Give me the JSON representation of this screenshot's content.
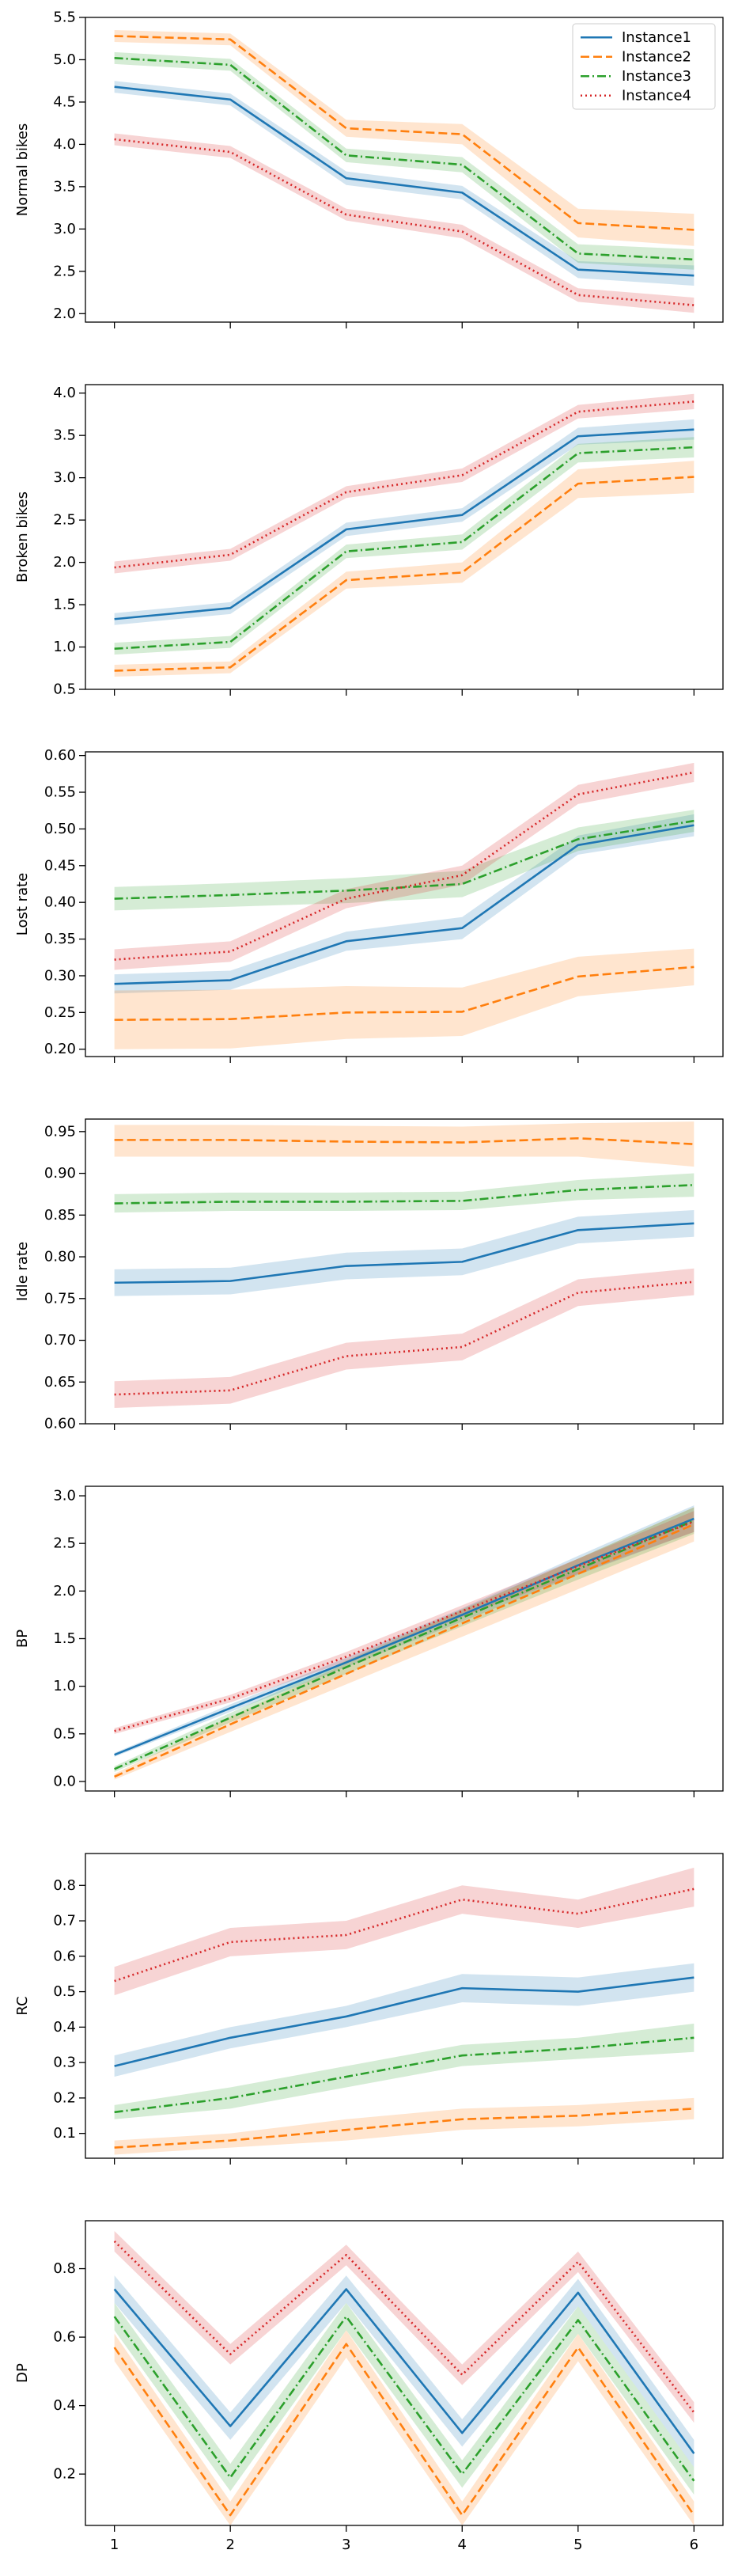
{
  "chart_data": [
    {
      "type": "line",
      "ylabel": "Normal bikes",
      "ylim": [
        1.9,
        5.5
      ],
      "yticks": [
        2.0,
        2.5,
        3.0,
        3.5,
        4.0,
        4.5,
        5.0,
        5.5
      ],
      "ytick_labels": [
        "2.0",
        "2.5",
        "3.0",
        "3.5",
        "4.0",
        "4.5",
        "5.0",
        "5.5"
      ],
      "show_xtick_labels": false,
      "legend": "top-right",
      "series": [
        {
          "name": "Instance1",
          "values": [
            4.68,
            4.53,
            3.6,
            3.43,
            2.52,
            2.45
          ],
          "lo": [
            4.61,
            4.46,
            3.52,
            3.35,
            2.42,
            2.33
          ],
          "hi": [
            4.75,
            4.6,
            3.68,
            3.51,
            2.62,
            2.57
          ]
        },
        {
          "name": "Instance2",
          "values": [
            5.28,
            5.24,
            4.19,
            4.12,
            3.07,
            2.99
          ],
          "lo": [
            5.21,
            5.17,
            4.09,
            4.0,
            2.9,
            2.8
          ],
          "hi": [
            5.35,
            5.31,
            4.29,
            4.24,
            3.24,
            3.18
          ]
        },
        {
          "name": "Instance3",
          "values": [
            5.02,
            4.94,
            3.87,
            3.76,
            2.71,
            2.64
          ],
          "lo": [
            4.95,
            4.87,
            3.79,
            3.67,
            2.6,
            2.52
          ],
          "hi": [
            5.09,
            5.01,
            3.95,
            3.85,
            2.82,
            2.76
          ]
        },
        {
          "name": "Instance4",
          "values": [
            4.06,
            3.91,
            3.17,
            2.97,
            2.22,
            2.1
          ],
          "lo": [
            3.99,
            3.84,
            3.1,
            2.89,
            2.14,
            2.01
          ],
          "hi": [
            4.13,
            3.98,
            3.24,
            3.05,
            2.3,
            2.19
          ]
        }
      ]
    },
    {
      "type": "line",
      "ylabel": "Broken bikes",
      "ylim": [
        0.5,
        4.1
      ],
      "yticks": [
        0.5,
        1.0,
        1.5,
        2.0,
        2.5,
        3.0,
        3.5,
        4.0
      ],
      "ytick_labels": [
        "0.5",
        "1.0",
        "1.5",
        "2.0",
        "2.5",
        "3.0",
        "3.5",
        "4.0"
      ],
      "show_xtick_labels": false,
      "series": [
        {
          "name": "Instance1",
          "values": [
            1.33,
            1.46,
            2.39,
            2.56,
            3.49,
            3.57
          ],
          "lo": [
            1.26,
            1.39,
            2.31,
            2.48,
            3.39,
            3.45
          ],
          "hi": [
            1.4,
            1.53,
            2.47,
            2.64,
            3.59,
            3.69
          ]
        },
        {
          "name": "Instance2",
          "values": [
            0.72,
            0.76,
            1.79,
            1.88,
            2.93,
            3.01
          ],
          "lo": [
            0.65,
            0.69,
            1.69,
            1.76,
            2.76,
            2.82
          ],
          "hi": [
            0.79,
            0.83,
            1.89,
            2.0,
            3.1,
            3.2
          ]
        },
        {
          "name": "Instance3",
          "values": [
            0.98,
            1.06,
            2.13,
            2.24,
            3.29,
            3.36
          ],
          "lo": [
            0.91,
            0.99,
            2.05,
            2.15,
            3.18,
            3.24
          ],
          "hi": [
            1.05,
            1.13,
            2.21,
            2.33,
            3.4,
            3.48
          ]
        },
        {
          "name": "Instance4",
          "values": [
            1.94,
            2.09,
            2.83,
            3.03,
            3.78,
            3.9
          ],
          "lo": [
            1.87,
            2.02,
            2.76,
            2.95,
            3.7,
            3.81
          ],
          "hi": [
            2.01,
            2.16,
            2.9,
            3.11,
            3.86,
            3.99
          ]
        }
      ]
    },
    {
      "type": "line",
      "ylabel": "Lost rate",
      "ylim": [
        0.19,
        0.605
      ],
      "yticks": [
        0.2,
        0.25,
        0.3,
        0.35,
        0.4,
        0.45,
        0.5,
        0.55,
        0.6
      ],
      "ytick_labels": [
        "0.20",
        "0.25",
        "0.30",
        "0.35",
        "0.40",
        "0.45",
        "0.50",
        "0.55",
        "0.60"
      ],
      "show_xtick_labels": false,
      "series": [
        {
          "name": "Instance1",
          "values": [
            0.289,
            0.294,
            0.347,
            0.365,
            0.478,
            0.505
          ],
          "lo": [
            0.276,
            0.281,
            0.334,
            0.35,
            0.465,
            0.49
          ],
          "hi": [
            0.302,
            0.307,
            0.36,
            0.38,
            0.491,
            0.52
          ]
        },
        {
          "name": "Instance2",
          "values": [
            0.24,
            0.241,
            0.25,
            0.251,
            0.299,
            0.312
          ],
          "lo": [
            0.2,
            0.201,
            0.214,
            0.218,
            0.272,
            0.287
          ],
          "hi": [
            0.28,
            0.281,
            0.286,
            0.284,
            0.326,
            0.337
          ]
        },
        {
          "name": "Instance3",
          "values": [
            0.405,
            0.41,
            0.416,
            0.425,
            0.486,
            0.511
          ],
          "lo": [
            0.389,
            0.394,
            0.399,
            0.407,
            0.47,
            0.496
          ],
          "hi": [
            0.421,
            0.426,
            0.433,
            0.443,
            0.502,
            0.526
          ]
        },
        {
          "name": "Instance4",
          "values": [
            0.322,
            0.333,
            0.405,
            0.437,
            0.547,
            0.577
          ],
          "lo": [
            0.308,
            0.319,
            0.392,
            0.424,
            0.534,
            0.564
          ],
          "hi": [
            0.336,
            0.347,
            0.418,
            0.45,
            0.56,
            0.59
          ]
        }
      ]
    },
    {
      "type": "line",
      "ylabel": "Idle rate",
      "ylim": [
        0.6,
        0.965
      ],
      "yticks": [
        0.6,
        0.65,
        0.7,
        0.75,
        0.8,
        0.85,
        0.9,
        0.95
      ],
      "ytick_labels": [
        "0.60",
        "0.65",
        "0.70",
        "0.75",
        "0.80",
        "0.85",
        "0.90",
        "0.95"
      ],
      "show_xtick_labels": false,
      "series": [
        {
          "name": "Instance1",
          "values": [
            0.769,
            0.771,
            0.789,
            0.794,
            0.832,
            0.84
          ],
          "lo": [
            0.753,
            0.755,
            0.773,
            0.778,
            0.816,
            0.824
          ],
          "hi": [
            0.785,
            0.787,
            0.805,
            0.81,
            0.848,
            0.856
          ]
        },
        {
          "name": "Instance2",
          "values": [
            0.94,
            0.94,
            0.938,
            0.937,
            0.942,
            0.935
          ],
          "lo": [
            0.92,
            0.92,
            0.92,
            0.92,
            0.92,
            0.908
          ],
          "hi": [
            0.958,
            0.958,
            0.957,
            0.956,
            0.96,
            0.962
          ]
        },
        {
          "name": "Instance3",
          "values": [
            0.864,
            0.866,
            0.866,
            0.867,
            0.88,
            0.886
          ],
          "lo": [
            0.853,
            0.855,
            0.855,
            0.856,
            0.868,
            0.872
          ],
          "hi": [
            0.875,
            0.877,
            0.877,
            0.878,
            0.892,
            0.9
          ]
        },
        {
          "name": "Instance4",
          "values": [
            0.635,
            0.64,
            0.681,
            0.692,
            0.757,
            0.77
          ],
          "lo": [
            0.619,
            0.624,
            0.665,
            0.676,
            0.741,
            0.754
          ],
          "hi": [
            0.651,
            0.656,
            0.697,
            0.708,
            0.773,
            0.786
          ]
        }
      ]
    },
    {
      "type": "line",
      "ylabel": "BP",
      "ylim": [
        -0.1,
        3.1
      ],
      "yticks": [
        0.0,
        0.5,
        1.0,
        1.5,
        2.0,
        2.5,
        3.0
      ],
      "ytick_labels": [
        "0.0",
        "0.5",
        "1.0",
        "1.5",
        "2.0",
        "2.5",
        "3.0"
      ],
      "show_xtick_labels": false,
      "series": [
        {
          "name": "Instance1",
          "values": [
            0.28,
            0.77,
            1.25,
            1.75,
            2.27,
            2.76
          ],
          "lo": [
            0.26,
            0.73,
            1.2,
            1.68,
            2.17,
            2.62
          ],
          "hi": [
            0.3,
            0.81,
            1.3,
            1.82,
            2.37,
            2.9
          ]
        },
        {
          "name": "Instance2",
          "values": [
            0.05,
            0.6,
            1.13,
            1.66,
            2.18,
            2.7
          ],
          "lo": [
            0.02,
            0.52,
            1.02,
            1.52,
            2.02,
            2.52
          ],
          "hi": [
            0.08,
            0.68,
            1.24,
            1.8,
            2.34,
            2.88
          ]
        },
        {
          "name": "Instance3",
          "values": [
            0.13,
            0.67,
            1.2,
            1.72,
            2.23,
            2.74
          ],
          "lo": [
            0.1,
            0.62,
            1.13,
            1.63,
            2.12,
            2.6
          ],
          "hi": [
            0.16,
            0.72,
            1.27,
            1.81,
            2.34,
            2.88
          ]
        },
        {
          "name": "Instance4",
          "values": [
            0.53,
            0.87,
            1.31,
            1.79,
            2.26,
            2.73
          ],
          "lo": [
            0.5,
            0.83,
            1.26,
            1.73,
            2.18,
            2.62
          ],
          "hi": [
            0.56,
            0.91,
            1.36,
            1.85,
            2.34,
            2.84
          ]
        }
      ]
    },
    {
      "type": "line",
      "ylabel": "RC",
      "ylim": [
        0.03,
        0.89
      ],
      "yticks": [
        0.1,
        0.2,
        0.3,
        0.4,
        0.5,
        0.6,
        0.7,
        0.8
      ],
      "ytick_labels": [
        "0.1",
        "0.2",
        "0.3",
        "0.4",
        "0.5",
        "0.6",
        "0.7",
        "0.8"
      ],
      "show_xtick_labels": false,
      "series": [
        {
          "name": "Instance1",
          "values": [
            0.29,
            0.37,
            0.43,
            0.51,
            0.5,
            0.54
          ],
          "lo": [
            0.26,
            0.34,
            0.4,
            0.47,
            0.46,
            0.5
          ],
          "hi": [
            0.32,
            0.4,
            0.46,
            0.55,
            0.54,
            0.58
          ]
        },
        {
          "name": "Instance2",
          "values": [
            0.06,
            0.08,
            0.11,
            0.14,
            0.15,
            0.17
          ],
          "lo": [
            0.04,
            0.06,
            0.08,
            0.11,
            0.12,
            0.14
          ],
          "hi": [
            0.08,
            0.1,
            0.14,
            0.17,
            0.18,
            0.2
          ]
        },
        {
          "name": "Instance3",
          "values": [
            0.16,
            0.2,
            0.26,
            0.32,
            0.34,
            0.37
          ],
          "lo": [
            0.14,
            0.17,
            0.23,
            0.29,
            0.31,
            0.33
          ],
          "hi": [
            0.18,
            0.23,
            0.29,
            0.35,
            0.37,
            0.41
          ]
        },
        {
          "name": "Instance4",
          "values": [
            0.53,
            0.64,
            0.66,
            0.76,
            0.72,
            0.79
          ],
          "lo": [
            0.49,
            0.6,
            0.62,
            0.72,
            0.68,
            0.74
          ],
          "hi": [
            0.57,
            0.68,
            0.7,
            0.8,
            0.76,
            0.85
          ]
        }
      ]
    },
    {
      "type": "line",
      "ylabel": "DP",
      "ylim": [
        0.05,
        0.94
      ],
      "yticks": [
        0.2,
        0.4,
        0.6,
        0.8
      ],
      "ytick_labels": [
        "0.2",
        "0.4",
        "0.6",
        "0.8"
      ],
      "xticks": [
        1,
        2,
        3,
        4,
        5,
        6
      ],
      "xtick_labels": [
        "1",
        "2",
        "3",
        "4",
        "5",
        "6"
      ],
      "show_xtick_labels": true,
      "series": [
        {
          "name": "Instance1",
          "values": [
            0.74,
            0.34,
            0.74,
            0.32,
            0.73,
            0.26
          ],
          "lo": [
            0.7,
            0.3,
            0.7,
            0.28,
            0.69,
            0.22
          ],
          "hi": [
            0.78,
            0.38,
            0.78,
            0.36,
            0.77,
            0.3
          ]
        },
        {
          "name": "Instance2",
          "values": [
            0.57,
            0.08,
            0.58,
            0.08,
            0.57,
            0.08
          ],
          "lo": [
            0.53,
            0.05,
            0.54,
            0.05,
            0.53,
            0.05
          ],
          "hi": [
            0.61,
            0.12,
            0.62,
            0.12,
            0.61,
            0.12
          ]
        },
        {
          "name": "Instance3",
          "values": [
            0.66,
            0.19,
            0.66,
            0.2,
            0.65,
            0.18
          ],
          "lo": [
            0.62,
            0.15,
            0.62,
            0.16,
            0.61,
            0.14
          ],
          "hi": [
            0.7,
            0.23,
            0.7,
            0.24,
            0.69,
            0.22
          ]
        },
        {
          "name": "Instance4",
          "values": [
            0.88,
            0.55,
            0.84,
            0.49,
            0.82,
            0.38
          ],
          "lo": [
            0.85,
            0.52,
            0.81,
            0.46,
            0.79,
            0.35
          ],
          "hi": [
            0.91,
            0.58,
            0.87,
            0.52,
            0.85,
            0.41
          ]
        }
      ]
    }
  ],
  "x_values": [
    1,
    2,
    3,
    4,
    5,
    6
  ],
  "series_style": {
    "Instance1": {
      "color": "#1f77b4",
      "dash": "solid"
    },
    "Instance2": {
      "color": "#ff7f0e",
      "dash": "dashed"
    },
    "Instance3": {
      "color": "#2ca02c",
      "dash": "dashdot"
    },
    "Instance4": {
      "color": "#d62728",
      "dash": "dotted"
    }
  }
}
